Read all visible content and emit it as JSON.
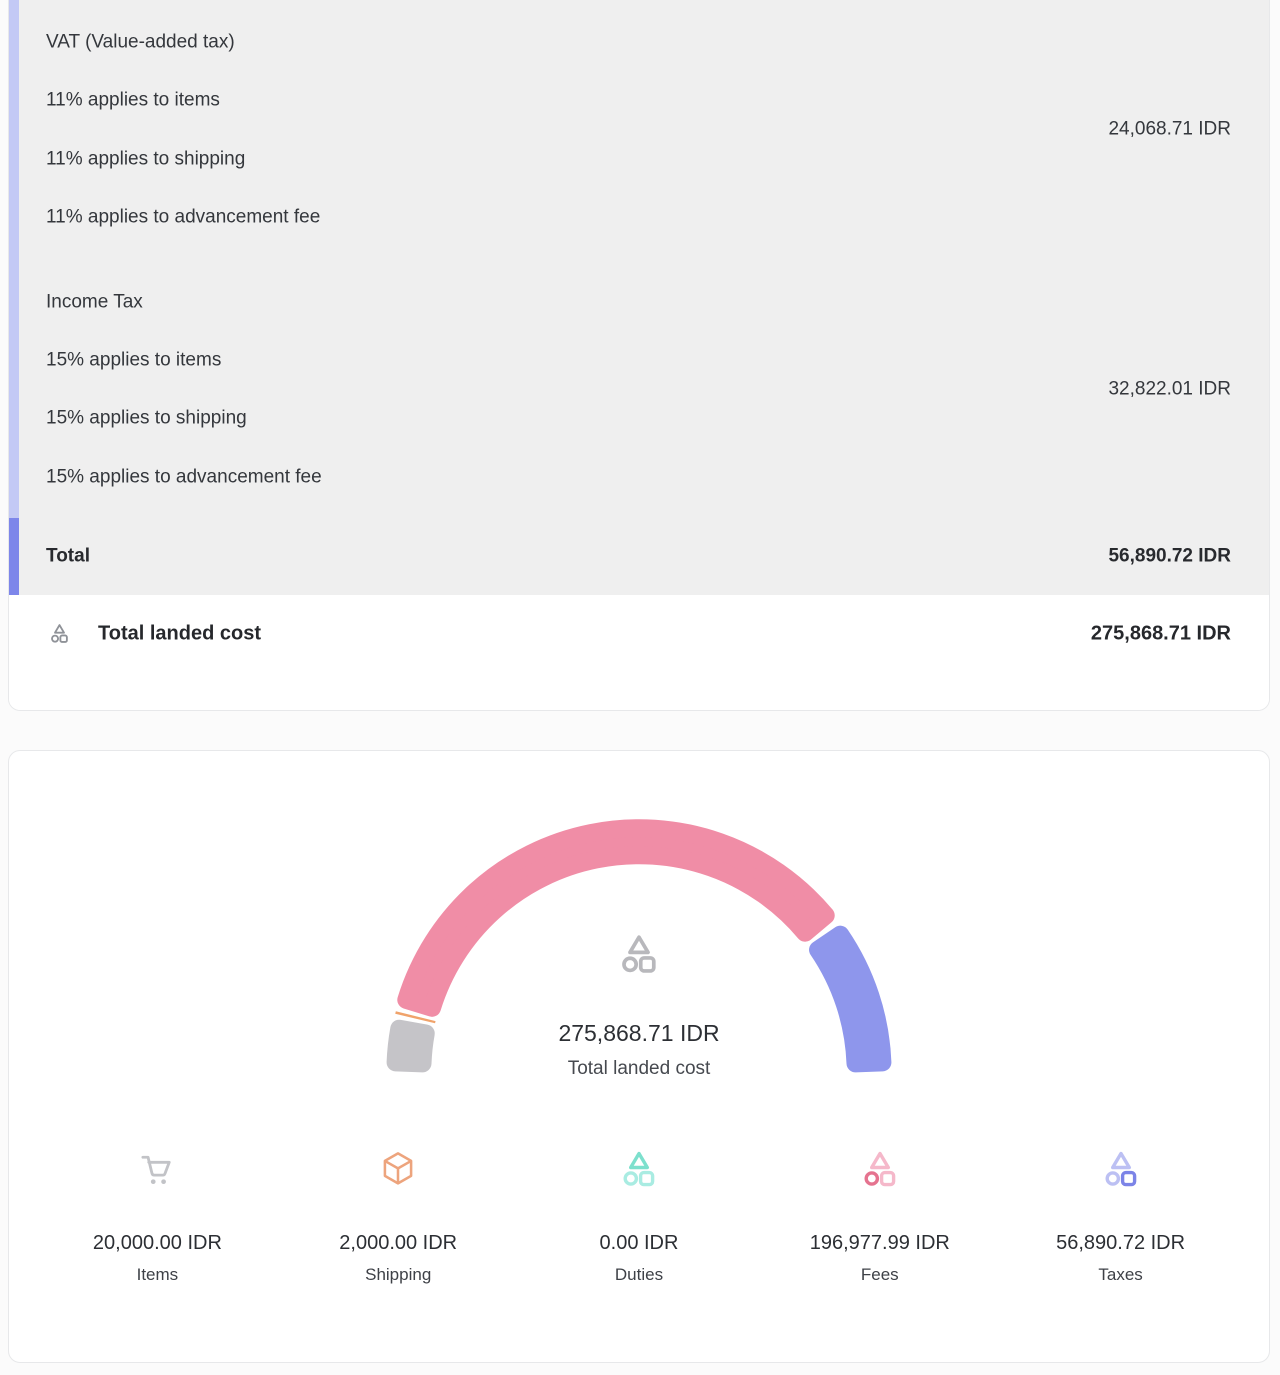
{
  "tax_breakdown": {
    "vat": {
      "title": "VAT (Value-added tax)",
      "lines": [
        "11% applies to items",
        "11% applies to shipping",
        "11% applies to advancement fee"
      ],
      "amount": "24,068.71 IDR"
    },
    "income_tax": {
      "title": "Income Tax",
      "lines": [
        "15% applies to items",
        "15% applies to shipping",
        "15% applies to advancement fee"
      ],
      "amount": "32,822.01 IDR"
    },
    "total": {
      "label": "Total",
      "amount": "56,890.72 IDR"
    }
  },
  "total_landed_cost": {
    "label": "Total landed cost",
    "amount": "275,868.71 IDR",
    "icon": "shapes-triad-icon"
  },
  "chart_data": {
    "type": "gauge",
    "title": "Total landed cost",
    "center_value": "275,868.71 IDR",
    "center_label": "Total landed cost",
    "arc_span_degrees": 180,
    "total": 275868.71,
    "categories": [
      "Items",
      "Shipping",
      "Duties",
      "Fees",
      "Taxes"
    ],
    "values": [
      20000.0,
      2000.0,
      0.0,
      196977.99,
      56890.72
    ],
    "value_labels": [
      "20,000.00 IDR",
      "2,000.00 IDR",
      "0.00 IDR",
      "196,977.99 IDR",
      "56,890.72 IDR"
    ],
    "segment_colors": [
      "#c5c4c8",
      "#f0a36b",
      "#8fe3d4",
      "#f08da6",
      "#8e96ec"
    ],
    "icons": [
      "cart-icon",
      "package-icon",
      "shapes-triad-icon",
      "shapes-triad-icon",
      "shapes-triad-icon"
    ]
  },
  "colors": {
    "panel_bg": "#efefef",
    "scroll_track": "#c3c9f5",
    "scroll_thumb": "#7d86ea",
    "icon_gray": "#c2c3c7",
    "icon_orange": "#eda47d",
    "duties_light": "#a9ece2",
    "duties_dark": "#7de0cd",
    "fees_light": "#f5b8ca",
    "fees_dark": "#e5738f",
    "taxes_light": "#bcc0f3",
    "taxes_dark": "#7c84e7",
    "triad_gray": "#b8b8bc",
    "total_icon_gray": "#8f9298"
  }
}
